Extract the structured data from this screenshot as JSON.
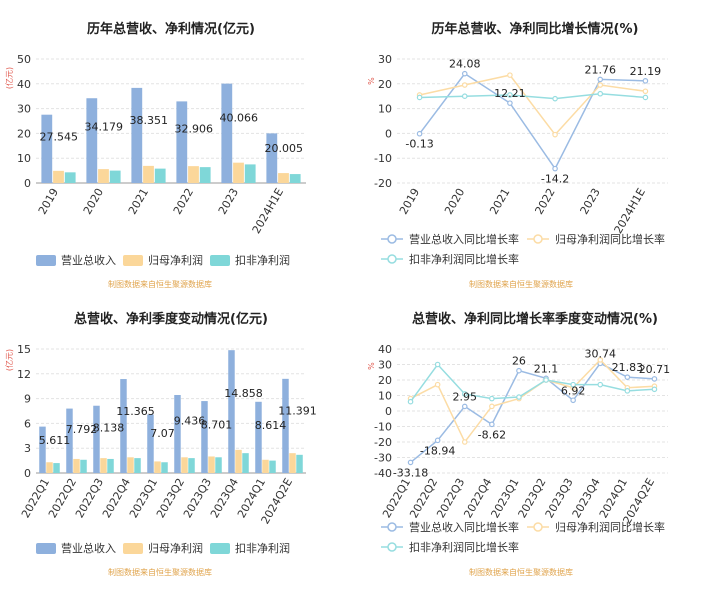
{
  "colors": {
    "revenue": "#8eb0dd",
    "parent_profit": "#fbd79a",
    "non_recurring": "#7fd7d8",
    "line_revenue": "#9bbbe3",
    "line_parent": "#fcdca5",
    "line_nonrec": "#96dde0",
    "axis_red": "#e05a4f",
    "source_text": "#e0a44d",
    "grid": "#e3e3e3",
    "text": "#333333"
  },
  "source_note": "制图数据来自恒生聚源数据库",
  "chart_data": [
    {
      "id": "annual_amount",
      "type": "bar",
      "title": "历年总营收、净利情况(亿元)",
      "unit_label": "(亿元)",
      "categories": [
        "2019",
        "2020",
        "2021",
        "2022",
        "2023",
        "2024H1E"
      ],
      "ylim": [
        0,
        50
      ],
      "yticks": [
        0,
        10,
        20,
        30,
        40,
        50
      ],
      "series": [
        {
          "name": "营业总收入",
          "values": [
            27.545,
            34.179,
            38.351,
            32.906,
            40.066,
            20.005
          ],
          "labels": [
            "27.545",
            "34.179",
            "38.351",
            "32.906",
            "40.066",
            "20.005"
          ]
        },
        {
          "name": "归母净利润",
          "values": [
            4.9,
            5.6,
            6.9,
            6.8,
            8.2,
            4.0
          ]
        },
        {
          "name": "扣非净利润",
          "values": [
            4.3,
            5.0,
            5.8,
            6.4,
            7.5,
            3.6
          ]
        }
      ],
      "legend": "bottom"
    },
    {
      "id": "annual_growth",
      "type": "line",
      "title": "历年总营收、净利同比增长情况(%)",
      "unit_label": "%",
      "categories": [
        "2019",
        "2020",
        "2021",
        "2022",
        "2023",
        "2024H1E"
      ],
      "ylim": [
        -20,
        30
      ],
      "yticks": [
        -20,
        -10,
        0,
        10,
        20,
        30
      ],
      "series": [
        {
          "name": "营业总收入同比增长率",
          "values": [
            -0.13,
            24.08,
            12.21,
            -14.2,
            21.76,
            21.19
          ],
          "labels": [
            "-0.13",
            "24.08",
            "12.21",
            "-14.2",
            "21.76",
            "21.19"
          ]
        },
        {
          "name": "归母净利润同比增长率",
          "values": [
            15.5,
            19.5,
            23.5,
            -0.5,
            19.5,
            17.0
          ]
        },
        {
          "name": "扣非净利润同比增长率",
          "values": [
            14.5,
            15.0,
            15.5,
            14.0,
            16.0,
            14.5
          ]
        }
      ],
      "legend": "bottom"
    },
    {
      "id": "quarter_amount",
      "type": "bar",
      "title": "总营收、净利季度变动情况(亿元)",
      "unit_label": "(亿元)",
      "categories": [
        "2022Q1",
        "2022Q2",
        "2022Q3",
        "2022Q4",
        "2023Q1",
        "2023Q2",
        "2023Q3",
        "2023Q4",
        "2024Q1",
        "2024Q2E"
      ],
      "ylim": [
        0,
        15
      ],
      "yticks": [
        0,
        3,
        6,
        9,
        12,
        15
      ],
      "series": [
        {
          "name": "营业总收入",
          "values": [
            5.611,
            7.792,
            8.138,
            11.365,
            7.07,
            9.436,
            8.701,
            14.858,
            8.614,
            11.391
          ],
          "labels": [
            "5.611",
            "7.792",
            "8.138",
            "11.365",
            "7.07",
            "9.436",
            "8.701",
            "14.858",
            "8.614",
            "11.391"
          ]
        },
        {
          "name": "归母净利润",
          "values": [
            1.3,
            1.7,
            1.8,
            1.9,
            1.4,
            1.9,
            2.0,
            2.8,
            1.6,
            2.4
          ]
        },
        {
          "name": "扣非净利润",
          "values": [
            1.2,
            1.6,
            1.7,
            1.8,
            1.3,
            1.8,
            1.9,
            2.4,
            1.5,
            2.2
          ]
        }
      ],
      "legend": "bottom"
    },
    {
      "id": "quarter_growth",
      "type": "line",
      "title": "总营收、净利同比增长率季度变动情况(%)",
      "unit_label": "%",
      "categories": [
        "2022Q1",
        "2022Q2",
        "2022Q3",
        "2022Q4",
        "2023Q1",
        "2023Q2",
        "2023Q3",
        "2023Q4",
        "2024Q1",
        "2024Q2E"
      ],
      "ylim": [
        -40,
        40
      ],
      "yticks": [
        -40,
        -30,
        -20,
        -10,
        0,
        10,
        20,
        30,
        40
      ],
      "series": [
        {
          "name": "营业总收入同比增长率",
          "values": [
            -33.18,
            -18.94,
            2.95,
            -8.62,
            26,
            21.1,
            6.92,
            30.74,
            21.83,
            20.71
          ],
          "labels": [
            "-33.18",
            "-18.94",
            "2.95",
            "-8.62",
            "26",
            "21.1",
            "6.92",
            "30.74",
            "21.83",
            "20.71"
          ]
        },
        {
          "name": "归母净利润同比增长率",
          "values": [
            8,
            17,
            -20,
            3,
            8,
            20,
            15,
            33,
            15,
            16
          ]
        },
        {
          "name": "扣非净利润同比增长率",
          "values": [
            6,
            30,
            11,
            8,
            9,
            20,
            17,
            17,
            13,
            14
          ]
        }
      ],
      "legend": "bottom"
    }
  ]
}
